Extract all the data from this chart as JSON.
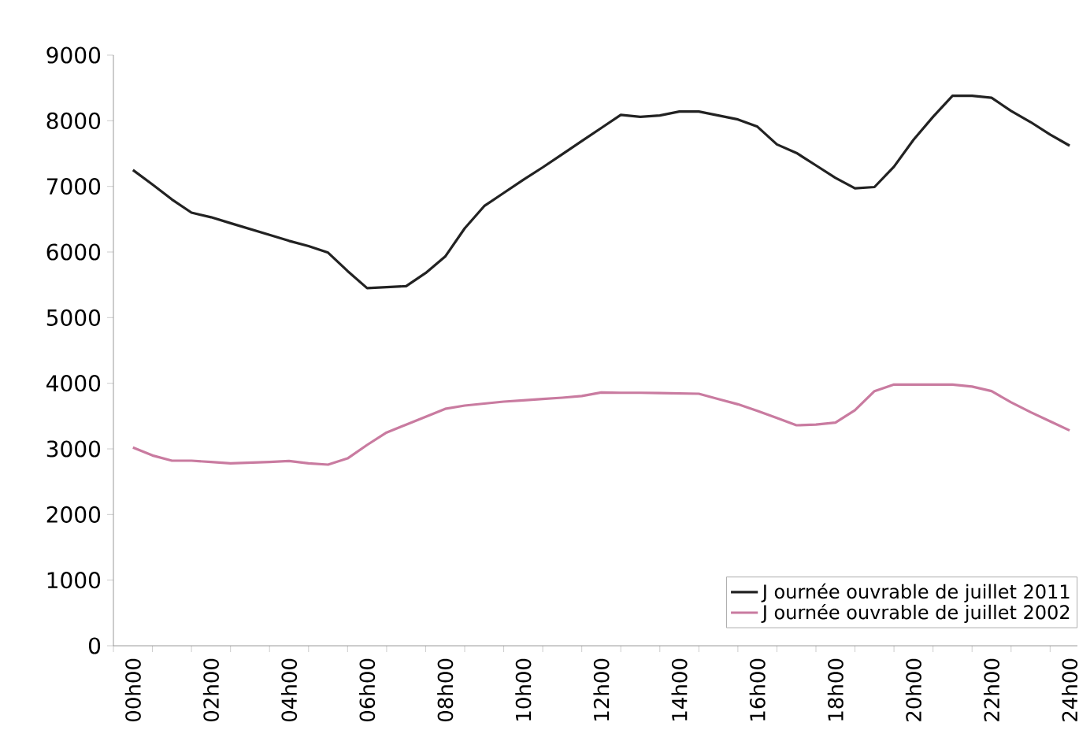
{
  "chart_data": {
    "type": "line",
    "categories": [
      "00h00",
      null,
      null,
      null,
      "02h00",
      null,
      null,
      null,
      "04h00",
      null,
      null,
      null,
      "06h00",
      null,
      null,
      null,
      "08h00",
      null,
      null,
      null,
      "10h00",
      null,
      null,
      null,
      "12h00",
      null,
      null,
      null,
      "14h00",
      null,
      null,
      null,
      "16h00",
      null,
      null,
      null,
      "18h00",
      null,
      null,
      null,
      "20h00",
      null,
      null,
      null,
      "22h00",
      null,
      null,
      null,
      "24h00"
    ],
    "series": [
      {
        "name": "J ournée ouvrable de juillet 2011",
        "color": "#222222",
        "values": [
          7250,
          7030,
          6800,
          6600,
          6530,
          6440,
          6350,
          6260,
          6170,
          6090,
          5990,
          5710,
          5450,
          5465,
          5480,
          5680,
          5930,
          6360,
          6700,
          6900,
          7100,
          7290,
          7490,
          7690,
          7890,
          8090,
          8060,
          8080,
          8140,
          8140,
          8080,
          8020,
          7910,
          7640,
          7510,
          7320,
          7130,
          6970,
          6990,
          7300,
          7710,
          8060,
          8380,
          8380,
          8350,
          8150,
          7980,
          7790,
          7620
        ]
      },
      {
        "name": "J ournée ouvrable de juillet 2002",
        "color": "#c97ba0",
        "values": [
          3020,
          2900,
          2820,
          2820,
          2800,
          2780,
          2790,
          2800,
          2815,
          2780,
          2760,
          2855,
          3060,
          3250,
          3370,
          3490,
          3610,
          3660,
          3690,
          3720,
          3740,
          3760,
          3780,
          3805,
          3860,
          3855,
          3855,
          3850,
          3845,
          3840,
          3760,
          3680,
          3580,
          3470,
          3360,
          3370,
          3400,
          3590,
          3880,
          3980,
          3980,
          3980,
          3980,
          3950,
          3880,
          3710,
          3560,
          3420,
          3280
        ]
      }
    ],
    "ylim": [
      0,
      9000
    ],
    "yticks": [
      0,
      1000,
      2000,
      3000,
      4000,
      5000,
      6000,
      7000,
      8000,
      9000
    ],
    "grid": false,
    "legend": "bottom right",
    "marker": "none",
    "line_style": "solid"
  }
}
